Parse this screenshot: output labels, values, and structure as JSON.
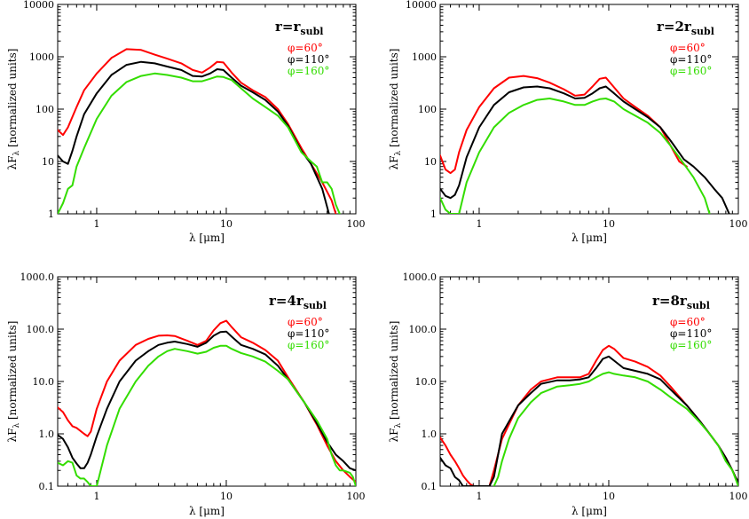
{
  "figure": {
    "xlabel": "λ [μm]",
    "ylabel": "λF",
    "ylabel_sub": "λ",
    "ylabel_suffix": " [normalized units]"
  },
  "legend_entries": [
    {
      "label": "φ=60°",
      "color": "#ff0000"
    },
    {
      "label": "φ=110°",
      "color": "#000000"
    },
    {
      "label": "φ=160°",
      "color": "#33dd00"
    }
  ],
  "chart_data": [
    {
      "type": "line",
      "title": "r=r",
      "title_sub": "subl",
      "xscale": "log",
      "yscale": "log",
      "xlim": [
        0.5,
        100
      ],
      "ylim": [
        1,
        10000
      ],
      "xticks": [
        "1",
        "10",
        "100"
      ],
      "yticks": [
        "1",
        "10",
        "100",
        "1000",
        "10000"
      ],
      "ytick_values": [
        1,
        10,
        100,
        1000,
        10000
      ],
      "xlabel": "λ [μm]",
      "ylabel": "λF_λ [normalized units]",
      "legend_position": "top-right",
      "series": [
        {
          "name": "φ=60°",
          "color": "#ff0000",
          "x": [
            0.5,
            0.55,
            0.6,
            0.7,
            0.8,
            1.0,
            1.3,
            1.7,
            2.2,
            2.8,
            3.5,
            4.5,
            5.5,
            6.5,
            7.5,
            8.5,
            9.5,
            11,
            13,
            16,
            20,
            25,
            30,
            38,
            45,
            55,
            65,
            70
          ],
          "y": [
            40,
            32,
            45,
            110,
            230,
            480,
            950,
            1400,
            1350,
            1100,
            920,
            750,
            560,
            500,
            620,
            800,
            780,
            500,
            320,
            230,
            170,
            100,
            52,
            18,
            9,
            4,
            1.8,
            1
          ]
        },
        {
          "name": "φ=110°",
          "color": "#000000",
          "x": [
            0.5,
            0.55,
            0.6,
            0.65,
            0.7,
            0.8,
            1.0,
            1.3,
            1.7,
            2.2,
            2.8,
            3.5,
            4.5,
            5.5,
            6.5,
            7.5,
            8.5,
            9.5,
            11,
            13,
            16,
            20,
            25,
            30,
            38,
            45,
            55,
            62
          ],
          "y": [
            13,
            10,
            9,
            16,
            30,
            80,
            200,
            450,
            700,
            800,
            750,
            650,
            560,
            430,
            420,
            480,
            580,
            560,
            400,
            280,
            210,
            150,
            90,
            48,
            16,
            9,
            3,
            1
          ]
        },
        {
          "name": "φ=160°",
          "color": "#33dd00",
          "x": [
            0.5,
            0.55,
            0.6,
            0.65,
            0.7,
            0.8,
            1.0,
            1.3,
            1.7,
            2.2,
            2.8,
            3.5,
            4.5,
            5.5,
            6.5,
            7.5,
            8.5,
            9.5,
            11,
            13,
            16,
            20,
            25,
            30,
            38,
            45,
            50,
            55,
            60,
            65,
            70,
            75
          ],
          "y": [
            1,
            1.6,
            3,
            3.5,
            8,
            18,
            65,
            180,
            330,
            430,
            480,
            450,
            400,
            340,
            340,
            380,
            420,
            410,
            360,
            250,
            160,
            110,
            75,
            45,
            15,
            10,
            8,
            4,
            4,
            3,
            1.5,
            1
          ]
        }
      ]
    },
    {
      "type": "line",
      "title": "r=2r",
      "title_sub": "subl",
      "xscale": "log",
      "yscale": "log",
      "xlim": [
        0.5,
        100
      ],
      "ylim": [
        1,
        10000
      ],
      "xticks": [
        "1",
        "10",
        "100"
      ],
      "yticks": [
        "1",
        "10",
        "100",
        "1000",
        "10000"
      ],
      "ytick_values": [
        1,
        10,
        100,
        1000,
        10000
      ],
      "xlabel": "λ [μm]",
      "ylabel": "λF_λ [normalized units]",
      "legend_position": "top-right",
      "series": [
        {
          "name": "φ=60°",
          "color": "#ff0000",
          "x": [
            0.5,
            0.55,
            0.6,
            0.65,
            0.7,
            0.8,
            1.0,
            1.3,
            1.7,
            2.2,
            2.8,
            3.5,
            4.5,
            5.5,
            6.5,
            7.5,
            8.5,
            9.5,
            11,
            13,
            16,
            20,
            25,
            30,
            35,
            40
          ],
          "y": [
            13,
            7,
            6,
            7,
            15,
            40,
            110,
            250,
            400,
            430,
            390,
            320,
            240,
            180,
            190,
            270,
            380,
            400,
            260,
            160,
            110,
            75,
            45,
            20,
            10,
            8
          ]
        },
        {
          "name": "φ=110°",
          "color": "#000000",
          "x": [
            0.5,
            0.55,
            0.6,
            0.65,
            0.7,
            0.8,
            1.0,
            1.3,
            1.7,
            2.2,
            2.8,
            3.5,
            4.5,
            5.5,
            6.5,
            7.5,
            8.5,
            9.5,
            11,
            13,
            16,
            20,
            25,
            30,
            38,
            45,
            55,
            65,
            75,
            85
          ],
          "y": [
            3,
            2.2,
            2,
            2.3,
            3.5,
            12,
            45,
            120,
            210,
            260,
            270,
            250,
            200,
            160,
            165,
            200,
            250,
            270,
            200,
            140,
            100,
            70,
            45,
            25,
            11,
            8,
            5,
            3,
            2,
            1
          ]
        },
        {
          "name": "φ=160°",
          "color": "#33dd00",
          "x": [
            0.5,
            0.55,
            0.6,
            0.7,
            0.8,
            1.0,
            1.3,
            1.7,
            2.2,
            2.8,
            3.5,
            4.5,
            5.5,
            6.5,
            7.5,
            8.5,
            9.5,
            11,
            13,
            16,
            20,
            25,
            30,
            38,
            45,
            55,
            60
          ],
          "y": [
            2,
            1.2,
            1,
            1,
            4,
            15,
            45,
            85,
            120,
            150,
            160,
            140,
            120,
            120,
            140,
            155,
            160,
            140,
            100,
            75,
            55,
            35,
            20,
            9,
            5,
            2,
            1
          ]
        }
      ]
    },
    {
      "type": "line",
      "title": "r=4r",
      "title_sub": "subl",
      "xscale": "log",
      "yscale": "log",
      "xlim": [
        0.5,
        100
      ],
      "ylim": [
        0.1,
        1000
      ],
      "xticks": [
        "1",
        "10",
        "100"
      ],
      "yticks": [
        "0.1",
        "1.0",
        "10.0",
        "100.0",
        "1000.0"
      ],
      "ytick_values": [
        0.1,
        1,
        10,
        100,
        1000
      ],
      "xlabel": "λ [μm]",
      "ylabel": "λF_λ [normalized units]",
      "legend_position": "top-right",
      "series": [
        {
          "name": "φ=60°",
          "color": "#ff0000",
          "x": [
            0.5,
            0.55,
            0.6,
            0.65,
            0.7,
            0.8,
            0.85,
            0.9,
            1.0,
            1.2,
            1.5,
            2.0,
            2.5,
            3.0,
            3.5,
            4.0,
            5.0,
            6.0,
            7.0,
            8.0,
            9.0,
            10,
            11,
            13,
            16,
            20,
            25,
            30,
            40,
            50,
            60,
            70,
            80,
            90,
            100
          ],
          "y": [
            3.2,
            2.6,
            1.8,
            1.4,
            1.3,
            1.0,
            0.9,
            1.1,
            3,
            10,
            25,
            50,
            65,
            75,
            76,
            74,
            60,
            50,
            60,
            95,
            130,
            145,
            110,
            70,
            55,
            40,
            25,
            12,
            4,
            1.5,
            0.6,
            0.3,
            0.2,
            0.15,
            0.12
          ]
        },
        {
          "name": "φ=110°",
          "color": "#000000",
          "x": [
            0.5,
            0.55,
            0.6,
            0.65,
            0.7,
            0.75,
            0.8,
            0.85,
            0.9,
            1.0,
            1.2,
            1.5,
            2.0,
            2.5,
            3.0,
            3.5,
            4.0,
            5.0,
            6.0,
            7.0,
            8.0,
            9.0,
            10,
            11,
            13,
            16,
            20,
            25,
            30,
            40,
            50,
            60,
            70,
            80,
            90,
            100
          ],
          "y": [
            0.95,
            0.8,
            0.55,
            0.35,
            0.27,
            0.22,
            0.22,
            0.28,
            0.4,
            0.9,
            3,
            10,
            25,
            38,
            50,
            55,
            58,
            52,
            46,
            55,
            75,
            88,
            90,
            72,
            50,
            42,
            33,
            20,
            11,
            4,
            1.6,
            0.7,
            0.4,
            0.3,
            0.22,
            0.2
          ]
        },
        {
          "name": "φ=160°",
          "color": "#33dd00",
          "x": [
            0.5,
            0.55,
            0.6,
            0.65,
            0.7,
            0.75,
            0.8,
            0.85,
            0.9,
            0.95,
            1.0,
            1.2,
            1.5,
            2.0,
            2.5,
            3.0,
            3.5,
            4.0,
            5.0,
            6.0,
            7.0,
            8.0,
            9.0,
            10,
            11,
            13,
            16,
            20,
            25,
            30,
            40,
            50,
            60,
            65,
            70,
            75,
            80,
            90,
            95,
            100
          ],
          "y": [
            0.28,
            0.25,
            0.3,
            0.28,
            0.16,
            0.14,
            0.14,
            0.12,
            0.1,
            0.1,
            0.1,
            0.6,
            3,
            10,
            20,
            30,
            38,
            42,
            38,
            34,
            37,
            44,
            48,
            48,
            42,
            35,
            30,
            24,
            16,
            11,
            4,
            1.8,
            0.8,
            0.4,
            0.25,
            0.2,
            0.2,
            0.18,
            0.15,
            0.1
          ]
        }
      ]
    },
    {
      "type": "line",
      "title": "r=8r",
      "title_sub": "subl",
      "xscale": "log",
      "yscale": "log",
      "xlim": [
        0.5,
        100
      ],
      "ylim": [
        0.1,
        1000
      ],
      "xticks": [
        "1",
        "10",
        "100"
      ],
      "yticks": [
        "0.1",
        "1.0",
        "10.0",
        "100.0",
        "1000.0"
      ],
      "ytick_values": [
        0.1,
        1,
        10,
        100,
        1000
      ],
      "xlabel": "λ [μm]",
      "ylabel": "λF_λ [normalized units]",
      "legend_position": "top-right",
      "series": [
        {
          "name": "φ=60°",
          "color": "#ff0000",
          "x": [
            0.5,
            0.55,
            0.6,
            0.65,
            0.7,
            0.75,
            0.8,
            0.85,
            0.9,
            1.0,
            1.2,
            1.3,
            1.5,
            2.0,
            2.5,
            3.0,
            4.0,
            5.0,
            6.0,
            7.0,
            8.0,
            9.0,
            10,
            11,
            13,
            16,
            20,
            25,
            30,
            40,
            50,
            60,
            70,
            80,
            90,
            95,
            100
          ],
          "y": [
            0.85,
            0.6,
            0.4,
            0.3,
            0.22,
            0.16,
            0.13,
            0.11,
            0.1,
            0.1,
            0.1,
            0.2,
            0.8,
            3.5,
            7,
            10,
            12,
            12,
            12,
            14,
            25,
            40,
            48,
            42,
            28,
            24,
            19,
            13,
            8,
            3.5,
            1.8,
            1.0,
            0.6,
            0.35,
            0.2,
            0.15,
            0.12
          ]
        },
        {
          "name": "φ=110°",
          "color": "#000000",
          "x": [
            0.5,
            0.55,
            0.6,
            0.65,
            0.7,
            0.75,
            0.8,
            0.85,
            0.9,
            1.0,
            1.2,
            1.3,
            1.5,
            2.0,
            2.5,
            3.0,
            4.0,
            5.0,
            6.0,
            7.0,
            8.0,
            9.0,
            10,
            11,
            13,
            16,
            20,
            25,
            30,
            40,
            50,
            60,
            70,
            80,
            90,
            95,
            100
          ],
          "y": [
            0.35,
            0.25,
            0.22,
            0.15,
            0.13,
            0.1,
            0.1,
            0.1,
            0.1,
            0.1,
            0.1,
            0.15,
            1.0,
            3.5,
            6,
            9,
            10.5,
            10.5,
            11,
            12,
            18,
            27,
            30,
            25,
            18,
            16,
            14,
            11,
            7,
            3.5,
            1.8,
            1.0,
            0.6,
            0.35,
            0.2,
            0.15,
            0.12
          ]
        },
        {
          "name": "φ=160°",
          "color": "#33dd00",
          "x": [
            1.3,
            1.4,
            1.5,
            1.7,
            2.0,
            2.5,
            3.0,
            4.0,
            5.0,
            6.0,
            7.0,
            8.0,
            9.0,
            10,
            11,
            13,
            16,
            20,
            25,
            30,
            40,
            50,
            60,
            70,
            80,
            90,
            100
          ],
          "y": [
            0.1,
            0.15,
            0.3,
            0.8,
            2,
            4,
            6,
            8,
            8.5,
            9,
            10,
            12,
            14,
            15,
            14,
            13,
            12,
            10,
            7,
            5,
            3,
            1.7,
            1.0,
            0.6,
            0.3,
            0.2,
            0.1
          ]
        }
      ]
    }
  ]
}
